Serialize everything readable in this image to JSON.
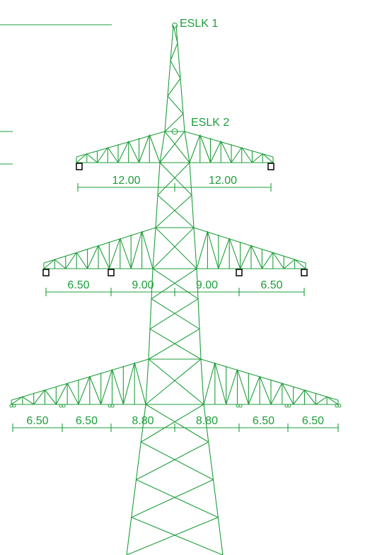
{
  "labels": {
    "eslk_1": "ESLK 1",
    "eslk_2": "ESLK 2"
  },
  "dimensions": {
    "top": [
      "12.00",
      "12.00"
    ],
    "middle": [
      "6.50",
      "9.00",
      "9.00",
      "6.50"
    ],
    "bottom": [
      "6.50",
      "6.50",
      "8.80",
      "8.80",
      "6.50",
      "6.50"
    ]
  }
}
